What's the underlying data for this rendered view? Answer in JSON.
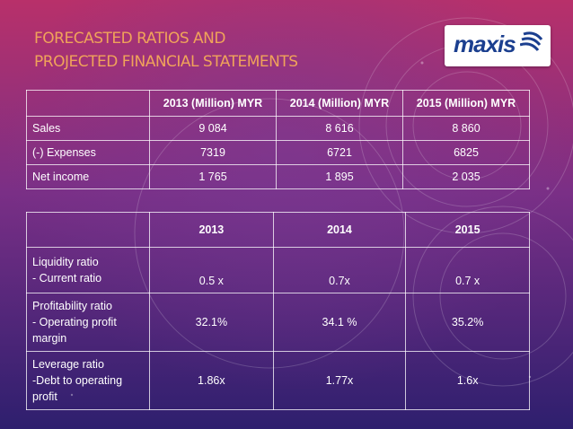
{
  "slide": {
    "title_lines": [
      "FORECASTED RATIOS AND",
      "PROJECTED FINANCIAL STATEMENTS"
    ],
    "logo_text": "maxis"
  },
  "financial_table": {
    "headers": [
      "",
      "2013 (Million) MYR",
      "2014 (Million) MYR",
      "2015 (Million) MYR"
    ],
    "rows": [
      {
        "label": "Sales",
        "values": [
          "9 084",
          "8 616",
          "8 860"
        ]
      },
      {
        "label": "(-) Expenses",
        "values": [
          "7319",
          "6721",
          "6825"
        ]
      },
      {
        "label": "Net income",
        "values": [
          "1 765",
          "1 895",
          "2 035"
        ]
      }
    ]
  },
  "ratio_table": {
    "headers": [
      "",
      "2013",
      "2014",
      "2015"
    ],
    "rows": [
      {
        "label_lines": [
          "Liquidity ratio",
          "- Current ratio"
        ],
        "values": [
          "0.5 x",
          "0.7x",
          "0.7 x"
        ]
      },
      {
        "label_lines": [
          "Profitability ratio",
          "- Operating profit",
          "margin"
        ],
        "values": [
          "32.1%",
          "34.1 %",
          "35.2%"
        ]
      },
      {
        "label_lines": [
          "Leverage ratio",
          "-Debt to operating",
          "profit"
        ],
        "values": [
          "1.86x",
          "1.77x",
          "1.6x"
        ]
      }
    ]
  },
  "colors": {
    "title": "#f0a35a",
    "logo_blue": "#1b3f8f",
    "bg_top": "#b8306a",
    "bg_bottom": "#2e1f6e"
  }
}
